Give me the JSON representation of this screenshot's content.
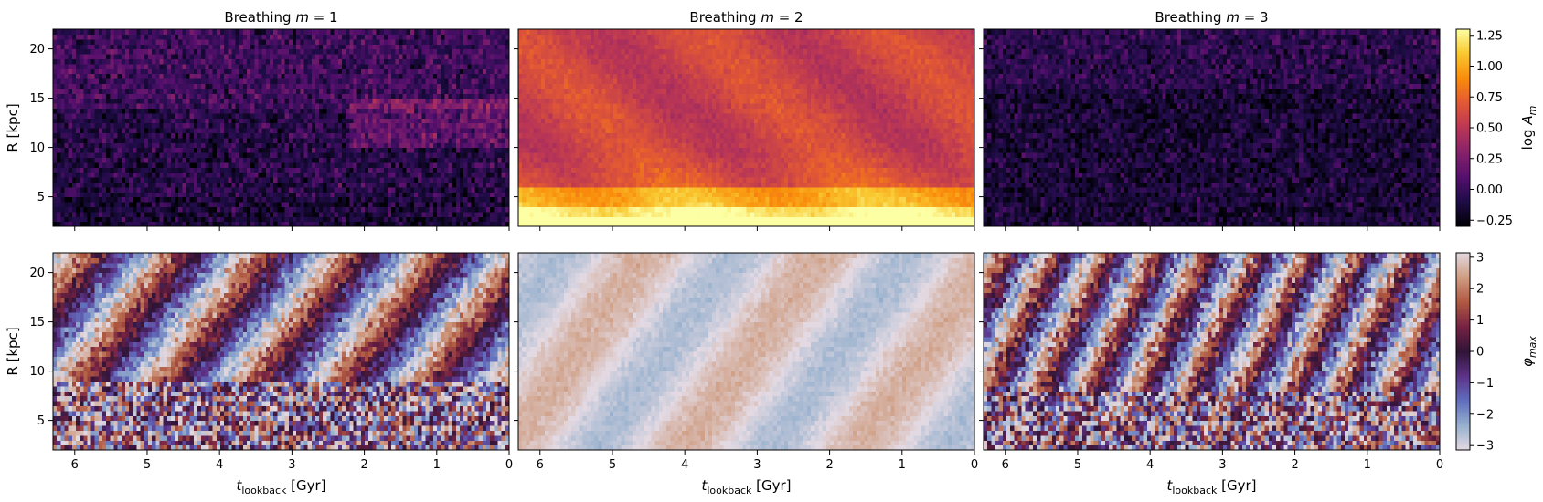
{
  "chart_data": {
    "type": "heatmap",
    "layout": {
      "rows": 2,
      "cols": 3
    },
    "panel_titles": [
      "Breathing m = 1",
      "Breathing m = 2",
      "Breathing m = 3"
    ],
    "panel_title_prefix": "Breathing ",
    "panel_title_var": "m",
    "panel_title_values": [
      "1",
      "2",
      "3"
    ],
    "xlabel": "t_lookback [Gyr]",
    "xlabel_main": "t",
    "xlabel_sub": "lookback",
    "xlabel_unit": " [Gyr]",
    "ylabel": "R [kpc]",
    "x_range": [
      6.3,
      0
    ],
    "x_ticks": [
      6,
      5,
      4,
      3,
      2,
      1,
      0
    ],
    "y_range": [
      2,
      22
    ],
    "y_ticks": [
      5,
      10,
      15,
      20
    ],
    "rows": [
      {
        "quantity": "log A_m",
        "colorbar_label": "log A_m",
        "colormap": "inferno",
        "color_range": [
          -0.3,
          1.3
        ],
        "colorbar_ticks": [
          "1.25",
          "1.00",
          "0.75",
          "0.50",
          "0.25",
          "0.00",
          "−0.25"
        ],
        "colorbar_tick_values": [
          1.25,
          1.0,
          0.75,
          0.5,
          0.25,
          0.0,
          -0.25
        ],
        "panels": [
          {
            "m": 1,
            "description": "mostly dark, values about -0.2 to 0.4, brighter purple band R 10-15 kpc at t < 2 Gyr"
          },
          {
            "m": 2,
            "description": "bright, values about 0.6 to 0.9 at large R, rising above 1.2 for R < 6 kpc"
          },
          {
            "m": 3,
            "description": "mostly dark, values about -0.3 to 0.3"
          }
        ]
      },
      {
        "quantity": "phi_max",
        "colorbar_label": "φ_max",
        "colormap": "twilight",
        "color_range": [
          -3.14,
          3.14
        ],
        "colorbar_ticks": [
          "3",
          "2",
          "1",
          "0",
          "−1",
          "−2",
          "−3"
        ],
        "colorbar_tick_values": [
          3,
          2,
          1,
          0,
          -1,
          -2,
          -3
        ],
        "panels": [
          {
            "m": 1,
            "description": "diagonal phase stripes, noisy at small R"
          },
          {
            "m": 2,
            "description": "mostly near ±π (pale), faint diagonal stripes"
          },
          {
            "m": 3,
            "description": "dense diagonal phase stripes"
          }
        ]
      }
    ]
  },
  "colors": {
    "background": "#ffffff",
    "axes": "#000000"
  }
}
